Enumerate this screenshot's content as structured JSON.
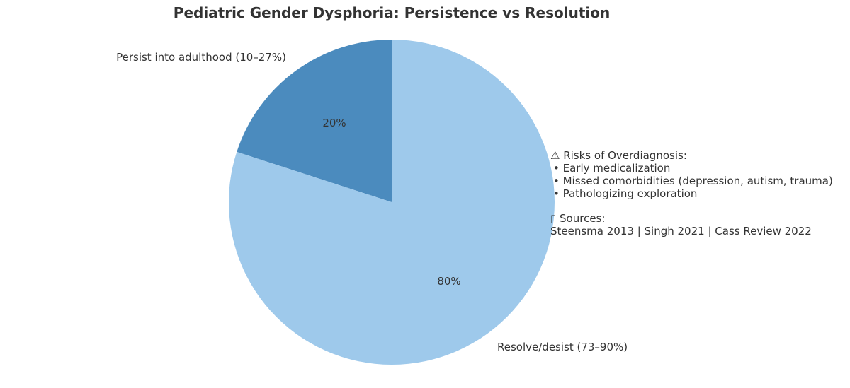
{
  "chart_data": {
    "type": "pie",
    "title": "Pediatric Gender Dysphoria: Persistence vs Resolution",
    "categories": [
      "Persist into adulthood (10–27%)",
      "Resolve/desist (73–90%)"
    ],
    "values": [
      20,
      80
    ],
    "value_labels": [
      "20%",
      "80%"
    ],
    "colors": [
      "#4b8bbe",
      "#9ec9eb"
    ],
    "start_angle_deg": 90,
    "direction": "counterclockwise",
    "grid": false,
    "legend": "none"
  },
  "notes": {
    "risks_title": "⚠ Risks of Overdiagnosis:",
    "risks": [
      "• Early medicalization",
      "• Missed comorbidities (depression, autism, trauma)",
      "• Pathologizing exploration"
    ],
    "sources_title": "▯ Sources:",
    "sources": "Steensma 2013 | Singh 2021 | Cass Review 2022"
  }
}
